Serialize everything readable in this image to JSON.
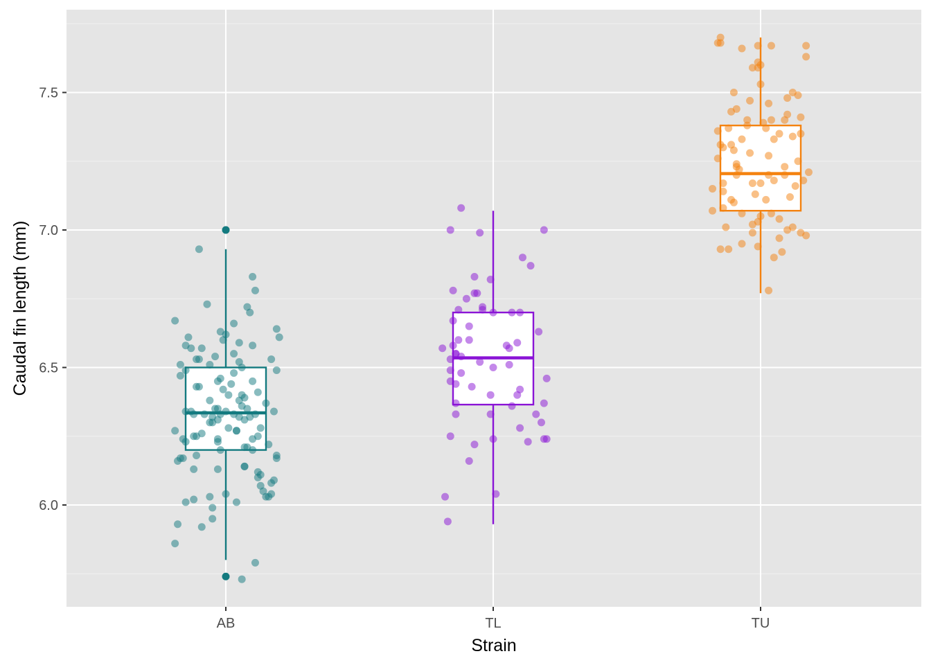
{
  "chart_data": {
    "type": "box",
    "xlabel": "Strain",
    "ylabel": "Caudal fin length (mm)",
    "categories": [
      "AB",
      "TL",
      "TU"
    ],
    "ylim": [
      5.64,
      7.79
    ],
    "yticks": [
      6.0,
      6.5,
      7.0,
      7.5
    ],
    "ytick_labels": [
      "6.0",
      "6.5",
      "7.0",
      "7.5"
    ],
    "grid": true,
    "legend": "none",
    "series": [
      {
        "category": "AB",
        "color": "#137a7f",
        "box": {
          "whisker_low": 5.8,
          "q1": 6.2,
          "median": 6.335,
          "q3": 6.5,
          "whisker_high": 6.93
        },
        "outliers": [
          7.0,
          5.74
        ],
        "points": [
          [
            6.93,
            -0.1
          ],
          [
            7.0,
            0.0
          ],
          [
            6.83,
            0.1
          ],
          [
            6.78,
            0.11
          ],
          [
            6.73,
            -0.07
          ],
          [
            6.72,
            0.08
          ],
          [
            6.7,
            0.09
          ],
          [
            6.67,
            -0.19
          ],
          [
            6.66,
            0.03
          ],
          [
            6.64,
            0.19
          ],
          [
            6.63,
            -0.02
          ],
          [
            6.62,
            0.0
          ],
          [
            6.61,
            -0.14
          ],
          [
            6.61,
            0.2
          ],
          [
            6.6,
            -0.01
          ],
          [
            6.59,
            0.05
          ],
          [
            6.58,
            -0.15
          ],
          [
            6.58,
            0.1
          ],
          [
            6.57,
            -0.09
          ],
          [
            6.57,
            -0.13
          ],
          [
            6.55,
            0.03
          ],
          [
            6.54,
            -0.04
          ],
          [
            6.53,
            -0.11
          ],
          [
            6.53,
            -0.1
          ],
          [
            6.53,
            0.17
          ],
          [
            6.52,
            0.05
          ],
          [
            6.51,
            -0.17
          ],
          [
            6.51,
            -0.06
          ],
          [
            6.5,
            0.06
          ],
          [
            6.49,
            0.19
          ],
          [
            6.49,
            -0.15
          ],
          [
            6.48,
            0.03
          ],
          [
            6.47,
            -0.17
          ],
          [
            6.46,
            -0.02
          ],
          [
            6.45,
            -0.03
          ],
          [
            6.45,
            0.1
          ],
          [
            6.44,
            0.02
          ],
          [
            6.43,
            -0.11
          ],
          [
            6.43,
            -0.1
          ],
          [
            6.42,
            -0.01
          ],
          [
            6.41,
            0.12
          ],
          [
            6.4,
            0.06
          ],
          [
            6.4,
            0.01
          ],
          [
            6.39,
            0.07
          ],
          [
            6.38,
            -0.06
          ],
          [
            6.38,
            0.05
          ],
          [
            6.37,
            0.15
          ],
          [
            6.36,
            0.06
          ],
          [
            6.35,
            -0.04
          ],
          [
            6.35,
            0.08
          ],
          [
            6.35,
            -0.03
          ],
          [
            6.34,
            0.0
          ],
          [
            6.34,
            0.18
          ],
          [
            6.34,
            -0.15
          ],
          [
            6.34,
            -0.13
          ],
          [
            6.33,
            -0.12
          ],
          [
            6.33,
            -0.08
          ],
          [
            6.33,
            0.03
          ],
          [
            6.33,
            -0.02
          ],
          [
            6.33,
            0.11
          ],
          [
            6.32,
            -0.05
          ],
          [
            6.32,
            0.05
          ],
          [
            6.32,
            0.09
          ],
          [
            6.31,
            -0.03
          ],
          [
            6.31,
            0.07
          ],
          [
            6.3,
            -0.05
          ],
          [
            6.3,
            -0.06
          ],
          [
            6.28,
            0.01
          ],
          [
            6.28,
            0.13
          ],
          [
            6.27,
            0.04
          ],
          [
            6.27,
            0.04
          ],
          [
            6.27,
            -0.19
          ],
          [
            6.26,
            -0.09
          ],
          [
            6.25,
            -0.11
          ],
          [
            6.25,
            0.12
          ],
          [
            6.25,
            -0.12
          ],
          [
            6.24,
            0.1
          ],
          [
            6.24,
            -0.16
          ],
          [
            6.24,
            -0.03
          ],
          [
            6.23,
            -0.15
          ],
          [
            6.23,
            -0.03
          ],
          [
            6.22,
            0.16
          ],
          [
            6.21,
            0.07
          ],
          [
            6.21,
            0.08
          ],
          [
            6.2,
            0.1
          ],
          [
            6.2,
            -0.02
          ],
          [
            6.18,
            0.19
          ],
          [
            6.18,
            -0.11
          ],
          [
            6.17,
            -0.17
          ],
          [
            6.17,
            0.19
          ],
          [
            6.17,
            -0.16
          ],
          [
            6.16,
            -0.18
          ],
          [
            6.14,
            0.07
          ],
          [
            6.14,
            0.07
          ],
          [
            6.13,
            -0.12
          ],
          [
            6.13,
            -0.03
          ],
          [
            6.12,
            0.12
          ],
          [
            6.11,
            0.13
          ],
          [
            6.1,
            0.12
          ],
          [
            6.09,
            0.18
          ],
          [
            6.08,
            0.17
          ],
          [
            6.07,
            0.13
          ],
          [
            6.05,
            0.14
          ],
          [
            6.04,
            0.17
          ],
          [
            6.04,
            0.0
          ],
          [
            6.03,
            0.15
          ],
          [
            6.03,
            0.16
          ],
          [
            6.03,
            -0.06
          ],
          [
            6.02,
            -0.12
          ],
          [
            6.01,
            -0.15
          ],
          [
            6.01,
            0.04
          ],
          [
            5.99,
            -0.05
          ],
          [
            5.95,
            -0.05
          ],
          [
            5.93,
            -0.18
          ],
          [
            5.92,
            -0.09
          ],
          [
            5.86,
            -0.19
          ],
          [
            5.79,
            0.11
          ],
          [
            5.73,
            0.06
          ]
        ]
      },
      {
        "category": "TL",
        "color": "#8a14d6",
        "box": {
          "whisker_low": 5.93,
          "q1": 6.365,
          "median": 6.535,
          "q3": 6.7,
          "whisker_high": 7.07
        },
        "outliers": [],
        "points": [
          [
            7.08,
            -0.12
          ],
          [
            7.0,
            -0.16
          ],
          [
            7.0,
            0.19
          ],
          [
            6.99,
            -0.05
          ],
          [
            6.9,
            0.11
          ],
          [
            6.87,
            0.14
          ],
          [
            6.83,
            -0.07
          ],
          [
            6.82,
            -0.01
          ],
          [
            6.78,
            -0.15
          ],
          [
            6.77,
            -0.07
          ],
          [
            6.77,
            -0.06
          ],
          [
            6.75,
            -0.1
          ],
          [
            6.72,
            -0.04
          ],
          [
            6.71,
            -0.13
          ],
          [
            6.71,
            -0.04
          ],
          [
            6.7,
            0.0
          ],
          [
            6.7,
            0.07
          ],
          [
            6.7,
            0.1
          ],
          [
            6.67,
            -0.15
          ],
          [
            6.65,
            -0.09
          ],
          [
            6.63,
            0.17
          ],
          [
            6.6,
            -0.13
          ],
          [
            6.6,
            -0.09
          ],
          [
            6.59,
            0.09
          ],
          [
            6.58,
            -0.15
          ],
          [
            6.58,
            0.05
          ],
          [
            6.57,
            0.06
          ],
          [
            6.57,
            -0.19
          ],
          [
            6.55,
            -0.14
          ],
          [
            6.55,
            -0.14
          ],
          [
            6.54,
            -0.12
          ],
          [
            6.53,
            -0.16
          ],
          [
            6.52,
            -0.05
          ],
          [
            6.51,
            0.06
          ],
          [
            6.5,
            0.0
          ],
          [
            6.49,
            -0.16
          ],
          [
            6.48,
            -0.12
          ],
          [
            6.46,
            0.2
          ],
          [
            6.45,
            -0.16
          ],
          [
            6.44,
            -0.14
          ],
          [
            6.43,
            -0.08
          ],
          [
            6.42,
            0.1
          ],
          [
            6.4,
            0.09
          ],
          [
            6.4,
            -0.01
          ],
          [
            6.37,
            0.19
          ],
          [
            6.37,
            -0.14
          ],
          [
            6.36,
            0.07
          ],
          [
            6.33,
            0.16
          ],
          [
            6.33,
            -0.14
          ],
          [
            6.33,
            -0.01
          ],
          [
            6.3,
            0.18
          ],
          [
            6.28,
            0.1
          ],
          [
            6.25,
            -0.16
          ],
          [
            6.24,
            0.19
          ],
          [
            6.24,
            0.2
          ],
          [
            6.24,
            0.0
          ],
          [
            6.23,
            0.13
          ],
          [
            6.22,
            -0.07
          ],
          [
            6.16,
            -0.09
          ],
          [
            6.04,
            0.01
          ],
          [
            6.03,
            -0.18
          ],
          [
            5.94,
            -0.17
          ]
        ]
      },
      {
        "category": "TU",
        "color": "#f4820f",
        "box": {
          "whisker_low": 6.77,
          "q1": 7.07,
          "median": 7.205,
          "q3": 7.38,
          "whisker_high": 7.7
        },
        "outliers": [],
        "points": [
          [
            7.7,
            -0.15
          ],
          [
            7.68,
            -0.16
          ],
          [
            7.68,
            -0.15
          ],
          [
            7.67,
            0.17
          ],
          [
            7.67,
            0.04
          ],
          [
            7.67,
            -0.01
          ],
          [
            7.66,
            -0.07
          ],
          [
            7.63,
            0.17
          ],
          [
            7.61,
            -0.01
          ],
          [
            7.6,
            0.0
          ],
          [
            7.59,
            -0.01
          ],
          [
            7.59,
            -0.03
          ],
          [
            7.53,
            0.0
          ],
          [
            7.5,
            0.12
          ],
          [
            7.5,
            -0.1
          ],
          [
            7.49,
            0.14
          ],
          [
            7.48,
            0.1
          ],
          [
            7.47,
            -0.04
          ],
          [
            7.46,
            0.03
          ],
          [
            7.44,
            -0.09
          ],
          [
            7.43,
            -0.11
          ],
          [
            7.42,
            0.1
          ],
          [
            7.41,
            0.15
          ],
          [
            7.4,
            -0.05
          ],
          [
            7.4,
            0.09
          ],
          [
            7.4,
            0.04
          ],
          [
            7.39,
            0.01
          ],
          [
            7.38,
            -0.05
          ],
          [
            7.37,
            -0.12
          ],
          [
            7.37,
            0.02
          ],
          [
            7.36,
            -0.16
          ],
          [
            7.35,
            0.07
          ],
          [
            7.35,
            0.15
          ],
          [
            7.34,
            0.12
          ],
          [
            7.33,
            0.05
          ],
          [
            7.33,
            -0.07
          ],
          [
            7.31,
            -0.11
          ],
          [
            7.31,
            -0.15
          ],
          [
            7.3,
            -0.14
          ],
          [
            7.29,
            -0.1
          ],
          [
            7.28,
            -0.04
          ],
          [
            7.27,
            0.03
          ],
          [
            7.26,
            -0.16
          ],
          [
            7.25,
            0.14
          ],
          [
            7.24,
            -0.09
          ],
          [
            7.23,
            0.09
          ],
          [
            7.23,
            -0.09
          ],
          [
            7.22,
            -0.08
          ],
          [
            7.21,
            0.18
          ],
          [
            7.2,
            0.09
          ],
          [
            7.2,
            0.03
          ],
          [
            7.2,
            -0.09
          ],
          [
            7.18,
            0.16
          ],
          [
            7.18,
            0.05
          ],
          [
            7.17,
            0.0
          ],
          [
            7.17,
            -0.03
          ],
          [
            7.17,
            -0.14
          ],
          [
            7.16,
            0.13
          ],
          [
            7.15,
            -0.18
          ],
          [
            7.14,
            -0.14
          ],
          [
            7.13,
            -0.02
          ],
          [
            7.12,
            0.11
          ],
          [
            7.11,
            0.02
          ],
          [
            7.11,
            -0.11
          ],
          [
            7.1,
            -0.1
          ],
          [
            7.08,
            -0.14
          ],
          [
            7.07,
            -0.18
          ],
          [
            7.06,
            0.04
          ],
          [
            7.06,
            -0.07
          ],
          [
            7.05,
            0.0
          ],
          [
            7.04,
            0.07
          ],
          [
            7.03,
            -0.01
          ],
          [
            7.02,
            -0.03
          ],
          [
            7.01,
            -0.13
          ],
          [
            7.01,
            0.12
          ],
          [
            7.0,
            0.1
          ],
          [
            6.99,
            -0.03
          ],
          [
            6.99,
            0.15
          ],
          [
            6.98,
            0.17
          ],
          [
            6.97,
            0.07
          ],
          [
            6.95,
            -0.07
          ],
          [
            6.94,
            -0.01
          ],
          [
            6.93,
            -0.12
          ],
          [
            6.93,
            -0.15
          ],
          [
            6.92,
            0.08
          ],
          [
            6.9,
            0.05
          ],
          [
            6.78,
            0.03
          ]
        ]
      }
    ]
  }
}
